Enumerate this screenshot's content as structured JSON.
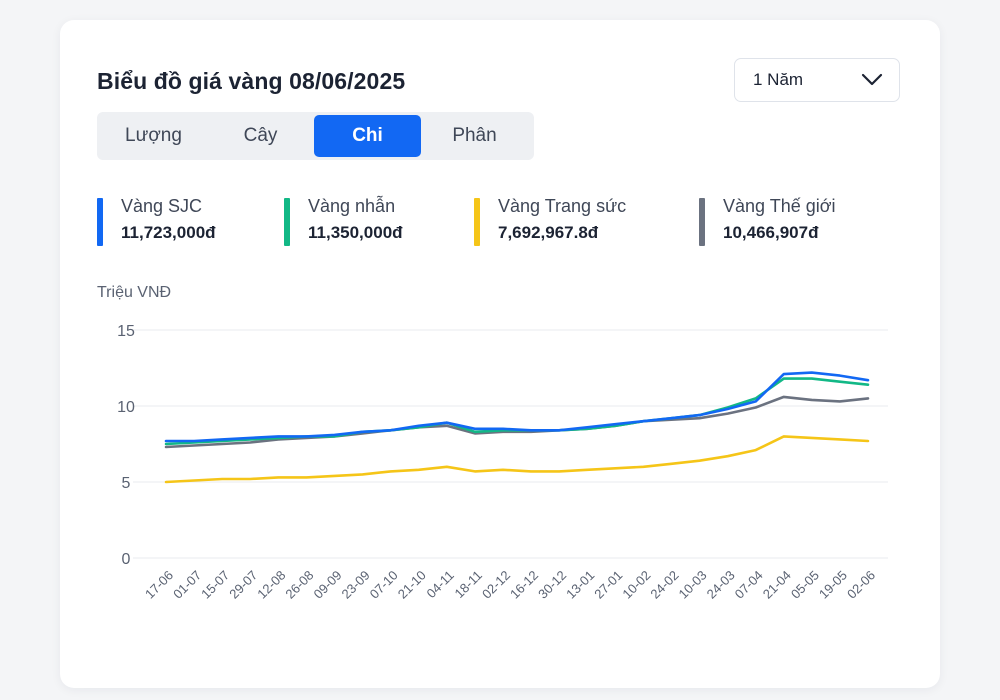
{
  "card": {
    "title": "Biểu đồ giá vàng 08/06/2025",
    "period_label": "1 Năm",
    "tabs": [
      {
        "label": "Lượng",
        "active": false
      },
      {
        "label": "Cây",
        "active": false
      },
      {
        "label": "Chi",
        "active": true
      },
      {
        "label": "Phân",
        "active": false
      }
    ],
    "legend": [
      {
        "name": "Vàng SJC",
        "value": "11,723,000đ",
        "color": "#1268f3"
      },
      {
        "name": "Vàng nhẫn",
        "value": "11,350,000đ",
        "color": "#12b886"
      },
      {
        "name": "Vàng Trang sức",
        "value": "7,692,967.8đ",
        "color": "#f5c518"
      },
      {
        "name": "Vàng Thế giới",
        "value": "10,466,907đ",
        "color": "#6b7280"
      }
    ],
    "unit_label": "Triệu VNĐ"
  },
  "chart_data": {
    "type": "line",
    "ylabel": "Triệu VNĐ",
    "ylim": [
      0,
      15
    ],
    "yticks": [
      0,
      5,
      10,
      15
    ],
    "grid": true,
    "x": [
      "17-06",
      "01-07",
      "15-07",
      "29-07",
      "12-08",
      "26-08",
      "09-09",
      "23-09",
      "07-10",
      "21-10",
      "04-11",
      "18-11",
      "02-12",
      "16-12",
      "30-12",
      "13-01",
      "27-01",
      "10-02",
      "24-02",
      "10-03",
      "24-03",
      "07-04",
      "21-04",
      "05-05",
      "19-05",
      "02-06"
    ],
    "series": [
      {
        "name": "Vàng SJC",
        "color": "#1268f3",
        "values": [
          7.7,
          7.7,
          7.8,
          7.9,
          8.0,
          8.0,
          8.1,
          8.3,
          8.4,
          8.7,
          8.9,
          8.5,
          8.5,
          8.4,
          8.4,
          8.6,
          8.8,
          9.0,
          9.2,
          9.4,
          9.8,
          10.3,
          12.1,
          12.2,
          12.0,
          11.7
        ]
      },
      {
        "name": "Vàng nhẫn",
        "color": "#12b886",
        "values": [
          7.5,
          7.6,
          7.7,
          7.8,
          7.9,
          8.0,
          8.0,
          8.3,
          8.4,
          8.6,
          8.9,
          8.3,
          8.4,
          8.4,
          8.4,
          8.5,
          8.7,
          9.0,
          9.2,
          9.4,
          9.9,
          10.5,
          11.8,
          11.8,
          11.6,
          11.4
        ]
      },
      {
        "name": "Vàng Trang sức",
        "color": "#f5c518",
        "values": [
          5.0,
          5.1,
          5.2,
          5.2,
          5.3,
          5.3,
          5.4,
          5.5,
          5.7,
          5.8,
          6.0,
          5.7,
          5.8,
          5.7,
          5.7,
          5.8,
          5.9,
          6.0,
          6.2,
          6.4,
          6.7,
          7.1,
          8.0,
          7.9,
          7.8,
          7.7
        ]
      },
      {
        "name": "Vàng Thế giới",
        "color": "#6b7280",
        "values": [
          7.3,
          7.4,
          7.5,
          7.6,
          7.8,
          7.9,
          8.0,
          8.2,
          8.4,
          8.6,
          8.7,
          8.2,
          8.3,
          8.3,
          8.4,
          8.5,
          8.7,
          9.0,
          9.1,
          9.2,
          9.5,
          9.9,
          10.6,
          10.4,
          10.3,
          10.5
        ]
      }
    ]
  }
}
